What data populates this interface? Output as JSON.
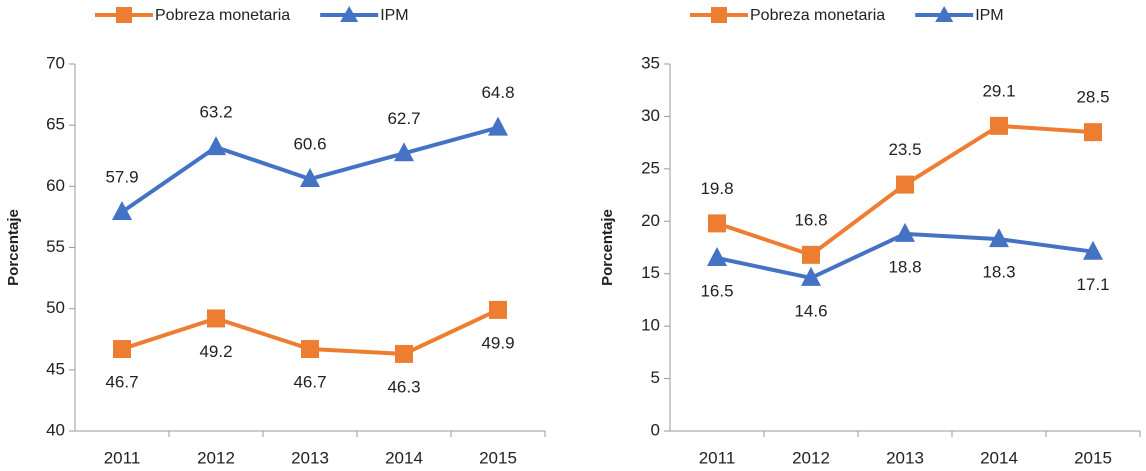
{
  "chart_data": [
    {
      "type": "line",
      "y_label": "Porcentaje",
      "categories": [
        "2011",
        "2012",
        "2013",
        "2014",
        "2015"
      ],
      "series": [
        {
          "name": "Pobreza monetaria",
          "color": "#ed7d31",
          "values": [
            46.7,
            49.2,
            46.7,
            46.3,
            49.9
          ]
        },
        {
          "name": "IPM",
          "color": "#4472c4",
          "values": [
            57.9,
            63.2,
            60.6,
            62.7,
            64.8
          ]
        }
      ],
      "ylim": [
        40,
        70
      ],
      "yticks": [
        40,
        45,
        50,
        55,
        60,
        65,
        70
      ]
    },
    {
      "type": "line",
      "y_label": "Porcentaje",
      "categories": [
        "2011",
        "2012",
        "2013",
        "2014",
        "2015"
      ],
      "series": [
        {
          "name": "Pobreza monetaria",
          "color": "#ed7d31",
          "values": [
            19.8,
            16.8,
            23.5,
            29.1,
            28.5
          ]
        },
        {
          "name": "IPM",
          "color": "#4472c4",
          "values": [
            16.5,
            14.6,
            18.8,
            18.3,
            17.1
          ]
        }
      ],
      "ylim": [
        0,
        35
      ],
      "yticks": [
        0,
        5,
        10,
        15,
        20,
        25,
        30,
        35
      ]
    }
  ]
}
